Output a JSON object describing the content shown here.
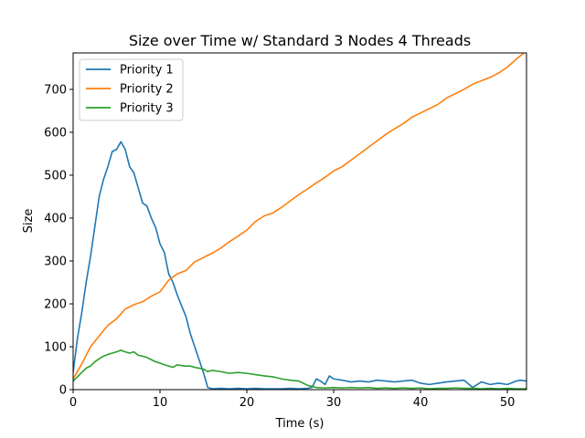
{
  "chart_data": {
    "type": "line",
    "title": "Size over Time w/ Standard 3 Nodes 4 Threads",
    "xlabel": "Time (s)",
    "ylabel": "Size",
    "xlim": [
      0,
      52.2
    ],
    "ylim": [
      0,
      785
    ],
    "xticks": [
      0,
      10,
      20,
      30,
      40,
      50
    ],
    "yticks": [
      0,
      100,
      200,
      300,
      400,
      500,
      600,
      700
    ],
    "grid": false,
    "legend_position": "top-left",
    "series": [
      {
        "name": "Priority 1",
        "color": "#1f77b4",
        "x": [
          0,
          0.5,
          1,
          1.5,
          2,
          2.5,
          3,
          3.5,
          4,
          4.5,
          5,
          5.5,
          6,
          6.5,
          7,
          7.5,
          8,
          8.5,
          9,
          9.5,
          10,
          10.5,
          11,
          11.5,
          12,
          12.5,
          13,
          13.5,
          14,
          14.5,
          15,
          15.5,
          16,
          17,
          18,
          19,
          20,
          21,
          22,
          23,
          24,
          25,
          26,
          27,
          27.5,
          28,
          28.5,
          29,
          29.5,
          30,
          31,
          32,
          33,
          34,
          35,
          36,
          37,
          38,
          39,
          40,
          41,
          42,
          43,
          44,
          45,
          46,
          47,
          48,
          49,
          50,
          51,
          51.5,
          52.2
        ],
        "y": [
          40,
          120,
          180,
          250,
          310,
          380,
          450,
          490,
          520,
          555,
          560,
          578,
          560,
          520,
          505,
          470,
          435,
          428,
          400,
          378,
          340,
          320,
          270,
          250,
          220,
          195,
          170,
          130,
          100,
          70,
          40,
          5,
          2,
          3,
          2,
          3,
          2,
          3,
          2,
          2,
          2,
          3,
          2,
          3,
          5,
          25,
          20,
          12,
          32,
          25,
          22,
          18,
          20,
          18,
          22,
          20,
          18,
          20,
          22,
          15,
          12,
          15,
          18,
          20,
          22,
          5,
          18,
          12,
          15,
          12,
          20,
          22,
          20
        ]
      },
      {
        "name": "Priority 2",
        "color": "#ff7f0e",
        "x": [
          0,
          1,
          2,
          3,
          4,
          5,
          6,
          7,
          8,
          9,
          10,
          11,
          12,
          13,
          14,
          15,
          16,
          17,
          18,
          19,
          20,
          21,
          22,
          23,
          24,
          25,
          26,
          27,
          28,
          29,
          30,
          31,
          32,
          33,
          34,
          35,
          36,
          37,
          38,
          39,
          40,
          41,
          42,
          43,
          44,
          45,
          46,
          47,
          48,
          49,
          50,
          51,
          52.2
        ],
        "y": [
          25,
          60,
          100,
          125,
          150,
          165,
          188,
          198,
          205,
          218,
          228,
          255,
          270,
          278,
          298,
          308,
          318,
          330,
          345,
          358,
          372,
          392,
          405,
          412,
          425,
          440,
          455,
          468,
          482,
          495,
          510,
          520,
          535,
          550,
          565,
          580,
          595,
          608,
          620,
          635,
          645,
          655,
          665,
          680,
          690,
          700,
          712,
          720,
          728,
          738,
          752,
          770,
          790
        ]
      },
      {
        "name": "Priority 3",
        "color": "#2ca02c",
        "x": [
          0,
          0.5,
          1,
          1.5,
          2,
          2.5,
          3,
          3.5,
          4,
          4.5,
          5,
          5.5,
          6,
          6.5,
          7,
          7.5,
          8,
          8.5,
          9,
          9.5,
          10,
          10.5,
          11,
          11.5,
          12,
          12.5,
          13,
          13.5,
          14,
          14.5,
          15,
          15.5,
          16,
          17,
          18,
          19,
          20,
          21,
          22,
          23,
          24,
          25,
          26,
          27,
          28,
          29,
          30,
          31,
          32,
          33,
          34,
          35,
          36,
          37,
          38,
          39,
          40,
          41,
          42,
          43,
          44,
          45,
          46,
          47,
          48,
          49,
          50,
          51,
          52.2
        ],
        "y": [
          20,
          30,
          40,
          50,
          55,
          65,
          72,
          78,
          82,
          85,
          88,
          92,
          88,
          85,
          88,
          80,
          78,
          75,
          70,
          65,
          62,
          58,
          55,
          52,
          58,
          56,
          55,
          55,
          52,
          50,
          48,
          42,
          45,
          42,
          38,
          40,
          38,
          35,
          32,
          30,
          25,
          22,
          20,
          10,
          5,
          4,
          5,
          4,
          5,
          4,
          5,
          3,
          4,
          3,
          4,
          3,
          4,
          2,
          3,
          3,
          4,
          3,
          3,
          2,
          3,
          2,
          3,
          2,
          2
        ]
      }
    ]
  }
}
